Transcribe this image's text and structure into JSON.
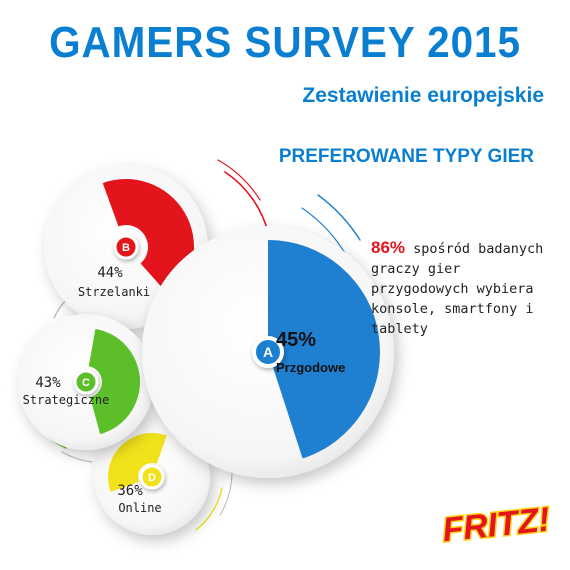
{
  "header": {
    "title": "GAMERS SURVEY 2015",
    "subtitle": "Zestawienie europejskie",
    "section_title": "PREFEROWANE TYPY GIER"
  },
  "note": {
    "highlight": "86%",
    "text": " spośród badanych graczy gier przygodowych wybiera konsole, smartfony i tablety"
  },
  "logo": {
    "text": "FRITZ!"
  },
  "chart_data": {
    "type": "pie",
    "title": "PREFEROWANE TYPY GIER",
    "series": [
      {
        "letter": "A",
        "name": "Przgodowe",
        "value": 45,
        "label": "45%",
        "color": "#1f7fd0"
      },
      {
        "letter": "B",
        "name": "Strzelanki",
        "value": 44,
        "label": "44%",
        "color": "#e3141c"
      },
      {
        "letter": "C",
        "name": "Strategiczne",
        "value": 43,
        "label": "43%",
        "color": "#5cbf2a"
      },
      {
        "letter": "D",
        "name": "Online",
        "value": 36,
        "label": "36%",
        "color": "#f2e21b"
      }
    ]
  }
}
